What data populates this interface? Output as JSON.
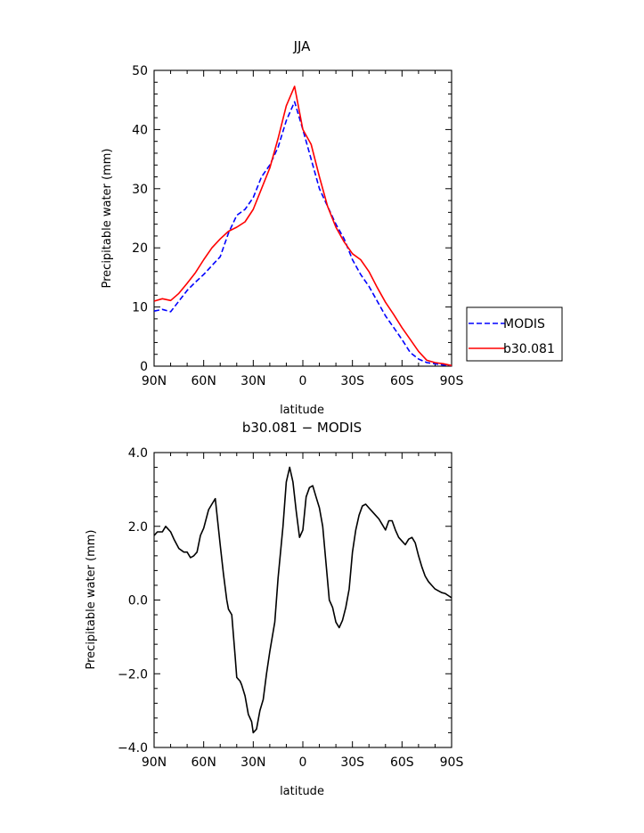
{
  "chart_data": [
    {
      "type": "line",
      "title": "JJA",
      "xlabel": "latitude",
      "ylabel": "Precipitable water (mm)",
      "xlim": [
        90,
        -90
      ],
      "ylim": [
        0,
        50
      ],
      "x_ticks": [
        90,
        60,
        30,
        0,
        -30,
        -60,
        -90
      ],
      "x_tick_labels": [
        "90N",
        "60N",
        "30N",
        "0",
        "30S",
        "60S",
        "90S"
      ],
      "y_ticks": [
        0,
        10,
        20,
        30,
        40,
        50
      ],
      "y_tick_labels": [
        "0",
        "10",
        "20",
        "30",
        "40",
        "50"
      ],
      "grid": false,
      "legend_position": "right",
      "series": [
        {
          "name": "MODIS",
          "color": "#0000ff",
          "dash": "dashed",
          "x": [
            90,
            85,
            80,
            75,
            70,
            65,
            60,
            55,
            50,
            45,
            40,
            35,
            30,
            25,
            20,
            15,
            10,
            5,
            0,
            -5,
            -10,
            -15,
            -20,
            -25,
            -30,
            -35,
            -40,
            -45,
            -50,
            -55,
            -60,
            -65,
            -70,
            -75,
            -80,
            -85,
            -90
          ],
          "y": [
            9.3,
            9.6,
            9.2,
            11.0,
            12.8,
            14.2,
            15.5,
            17.0,
            18.5,
            22.5,
            25.5,
            26.5,
            28.5,
            32.0,
            34.0,
            37.0,
            41.5,
            44.7,
            40.0,
            35.0,
            30.0,
            27.0,
            24.0,
            21.5,
            18.0,
            15.5,
            13.5,
            11.0,
            8.5,
            6.5,
            4.5,
            2.3,
            1.2,
            0.6,
            0.4,
            0.2,
            0.1
          ]
        },
        {
          "name": "b30.081",
          "color": "#ff0000",
          "dash": "solid",
          "x": [
            90,
            85,
            80,
            75,
            70,
            65,
            60,
            55,
            50,
            45,
            40,
            35,
            30,
            25,
            20,
            15,
            10,
            5,
            0,
            -5,
            -10,
            -15,
            -20,
            -25,
            -30,
            -35,
            -40,
            -45,
            -50,
            -55,
            -60,
            -65,
            -70,
            -75,
            -80,
            -85,
            -90
          ],
          "y": [
            11.0,
            11.4,
            11.1,
            12.3,
            14.0,
            15.8,
            18.0,
            20.0,
            21.5,
            22.8,
            23.5,
            24.4,
            26.5,
            30.0,
            33.5,
            38.5,
            44.0,
            47.3,
            40.0,
            37.5,
            32.0,
            27.0,
            23.5,
            21.0,
            19.0,
            18.0,
            16.0,
            13.3,
            10.8,
            8.7,
            6.5,
            4.5,
            2.5,
            1.0,
            0.6,
            0.4,
            0.1
          ]
        }
      ]
    },
    {
      "type": "line",
      "title": "b30.081 − MODIS",
      "xlabel": "latitude",
      "ylabel": "Precipitable water (mm)",
      "xlim": [
        90,
        -90
      ],
      "ylim": [
        -4,
        4
      ],
      "x_ticks": [
        90,
        60,
        30,
        0,
        -30,
        -60,
        -90
      ],
      "x_tick_labels": [
        "90N",
        "60N",
        "30N",
        "0",
        "30S",
        "60S",
        "90S"
      ],
      "y_ticks": [
        -4,
        -2,
        0,
        2,
        4
      ],
      "y_tick_labels": [
        "−4.0",
        "−2.0",
        "0.0",
        "2.0",
        "4.0"
      ],
      "grid": false,
      "series": [
        {
          "color": "#000000",
          "dash": "solid",
          "x": [
            90,
            88,
            85,
            83,
            80,
            78,
            75,
            72,
            70,
            68,
            66,
            64,
            62,
            60,
            57,
            55,
            53,
            50,
            48,
            46,
            45,
            43,
            41,
            40,
            38,
            37,
            35,
            33,
            31,
            30,
            28,
            26,
            24,
            22,
            20,
            17,
            15,
            12,
            10,
            8,
            6,
            4,
            2,
            0,
            -2,
            -4,
            -6,
            -8,
            -10,
            -12,
            -14,
            -16,
            -18,
            -20,
            -22,
            -24,
            -26,
            -28,
            -30,
            -32,
            -34,
            -36,
            -38,
            -40,
            -42,
            -44,
            -46,
            -48,
            -50,
            -52,
            -54,
            -56,
            -58,
            -60,
            -62,
            -64,
            -66,
            -68,
            -70,
            -72,
            -74,
            -76,
            -78,
            -80,
            -82,
            -84,
            -86,
            -88,
            -90
          ],
          "y": [
            1.75,
            1.85,
            1.85,
            2.0,
            1.85,
            1.65,
            1.4,
            1.3,
            1.3,
            1.15,
            1.2,
            1.3,
            1.75,
            1.95,
            2.45,
            2.6,
            2.75,
            1.5,
            0.7,
            0.0,
            -0.25,
            -0.4,
            -1.5,
            -2.1,
            -2.2,
            -2.3,
            -2.6,
            -3.1,
            -3.3,
            -3.6,
            -3.5,
            -3.0,
            -2.7,
            -2.0,
            -1.4,
            -0.6,
            0.6,
            2.0,
            3.2,
            3.6,
            3.2,
            2.4,
            1.7,
            1.9,
            2.8,
            3.05,
            3.1,
            2.8,
            2.5,
            2.0,
            1.0,
            0.0,
            -0.2,
            -0.6,
            -0.75,
            -0.55,
            -0.2,
            0.3,
            1.3,
            1.9,
            2.3,
            2.55,
            2.6,
            2.5,
            2.4,
            2.3,
            2.2,
            2.05,
            1.9,
            2.15,
            2.15,
            1.9,
            1.7,
            1.6,
            1.5,
            1.65,
            1.7,
            1.55,
            1.2,
            0.9,
            0.65,
            0.5,
            0.4,
            0.3,
            0.25,
            0.2,
            0.18,
            0.12,
            0.06
          ]
        }
      ]
    }
  ]
}
